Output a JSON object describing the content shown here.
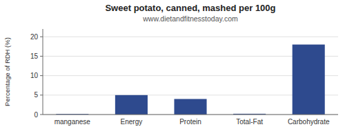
{
  "chart_data": {
    "type": "bar",
    "title": "Sweet potato, canned, mashed per 100g",
    "subtitle": "www.dietandfitnesstoday.com",
    "categories": [
      "manganese",
      "Energy",
      "Protein",
      "Total-Fat",
      "Carbohydrate"
    ],
    "values": [
      0.15,
      5.0,
      4.0,
      0.2,
      18.0
    ],
    "color": "#2e4a8e",
    "ylabel": "Percentage of RDH (%)",
    "ylim": [
      0,
      22
    ],
    "yticks": [
      0,
      5,
      10,
      15,
      20
    ],
    "grid": true
  }
}
